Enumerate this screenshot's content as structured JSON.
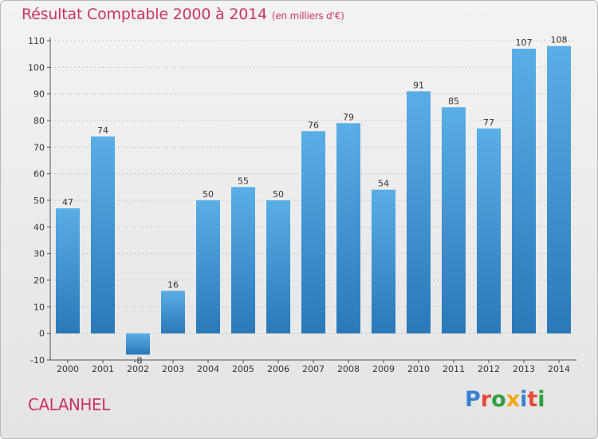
{
  "header": {
    "title": "Résultat Comptable 2000 à 2014",
    "subtitle": "(en milliers d'€)"
  },
  "footer": {
    "commune": "CALANHEL",
    "logo_text": "Proxiti"
  },
  "colors": {
    "title": "#cc3366",
    "bar_light": "#5aaee6",
    "bar_dark": "#2a78b8",
    "logo_letters": [
      "#3a7fd0",
      "#e64a3a",
      "#2f9e3f",
      "#f2a51a",
      "#3a7fd0",
      "#e64a3a",
      "#2f9e3f"
    ]
  },
  "chart_data": {
    "type": "bar",
    "title": "Résultat Comptable 2000 à 2014",
    "subtitle": "(en milliers d'€)",
    "xlabel": "",
    "ylabel": "",
    "categories": [
      "2000",
      "2001",
      "2002",
      "2003",
      "2004",
      "2005",
      "2006",
      "2007",
      "2008",
      "2009",
      "2010",
      "2011",
      "2012",
      "2013",
      "2014"
    ],
    "values": [
      47,
      74,
      -8,
      16,
      50,
      55,
      50,
      76,
      79,
      54,
      91,
      85,
      77,
      107,
      108
    ],
    "ylim": [
      -10,
      110
    ],
    "yticks": [
      -10,
      0,
      10,
      20,
      30,
      40,
      50,
      60,
      70,
      80,
      90,
      100,
      110
    ],
    "grid": true,
    "legend": "none"
  }
}
